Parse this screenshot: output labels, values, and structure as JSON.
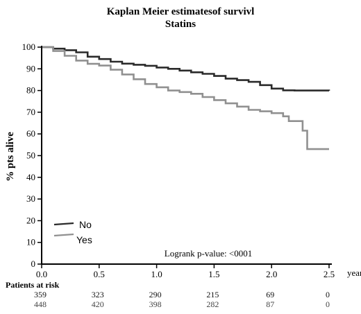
{
  "chart_data": {
    "type": "line",
    "title": "Kaplan Meier estimatesof survivl",
    "subtitle": "Statins",
    "ylabel": "% pts alive",
    "xunit": "years",
    "xlim": [
      0,
      2.5
    ],
    "ylim": [
      0,
      100
    ],
    "x_ticks": [
      "0.0",
      "0.5",
      "1.0",
      "1.5",
      "2.0",
      "2.5"
    ],
    "y_ticks": [
      "0",
      "10",
      "20",
      "30",
      "40",
      "50",
      "60",
      "70",
      "80",
      "90",
      "100"
    ],
    "annotation": "Logrank p-value: <0001",
    "series": [
      {
        "name": "No",
        "color": "#2a2a2a",
        "points": [
          [
            0,
            100
          ],
          [
            0.1,
            99.3
          ],
          [
            0.2,
            98.6
          ],
          [
            0.3,
            97.6
          ],
          [
            0.4,
            95.6
          ],
          [
            0.5,
            94.5
          ],
          [
            0.6,
            93.3
          ],
          [
            0.7,
            92.4
          ],
          [
            0.8,
            91.9
          ],
          [
            0.9,
            91.4
          ],
          [
            1.0,
            90.6
          ],
          [
            1.1,
            90.0
          ],
          [
            1.2,
            89.2
          ],
          [
            1.3,
            88.4
          ],
          [
            1.4,
            87.7
          ],
          [
            1.5,
            86.7
          ],
          [
            1.6,
            85.5
          ],
          [
            1.7,
            84.8
          ],
          [
            1.8,
            84.0
          ],
          [
            1.9,
            82.5
          ],
          [
            2.0,
            80.9
          ],
          [
            2.1,
            80.1
          ],
          [
            2.2,
            80.0
          ],
          [
            2.3,
            80.0
          ],
          [
            2.4,
            80.0
          ],
          [
            2.5,
            79.9
          ]
        ]
      },
      {
        "name": "Yes",
        "color": "#909090",
        "points": [
          [
            0,
            100
          ],
          [
            0.1,
            98.2
          ],
          [
            0.2,
            96.0
          ],
          [
            0.3,
            93.8
          ],
          [
            0.4,
            92.3
          ],
          [
            0.5,
            91.5
          ],
          [
            0.6,
            89.6
          ],
          [
            0.7,
            87.4
          ],
          [
            0.8,
            85.2
          ],
          [
            0.9,
            83.0
          ],
          [
            1.0,
            81.5
          ],
          [
            1.1,
            80.0
          ],
          [
            1.2,
            79.3
          ],
          [
            1.3,
            78.5
          ],
          [
            1.4,
            77.0
          ],
          [
            1.5,
            75.6
          ],
          [
            1.6,
            74.1
          ],
          [
            1.7,
            72.6
          ],
          [
            1.8,
            71.1
          ],
          [
            1.9,
            70.4
          ],
          [
            2.0,
            69.6
          ],
          [
            2.1,
            68.1
          ],
          [
            2.15,
            65.9
          ],
          [
            2.2,
            65.9
          ],
          [
            2.25,
            65.9
          ],
          [
            2.27,
            61.5
          ],
          [
            2.3,
            61.5
          ],
          [
            2.31,
            53.0
          ],
          [
            2.4,
            53.0
          ],
          [
            2.5,
            53.0
          ]
        ]
      }
    ],
    "risk_table": {
      "label": "Patients at risk",
      "times": [
        0.0,
        0.5,
        1.0,
        1.5,
        2.0,
        2.5
      ],
      "rows": [
        [
          "359",
          "323",
          "290",
          "215",
          "69",
          "0"
        ],
        [
          "448",
          "420",
          "398",
          "282",
          "87",
          "0"
        ]
      ]
    }
  }
}
